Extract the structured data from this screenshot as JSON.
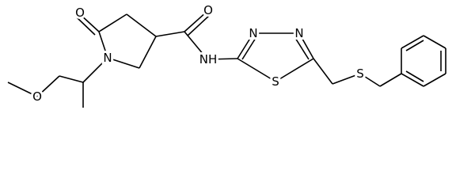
{
  "atoms": [
    {
      "label": "O"
    },
    {
      "label": "N"
    },
    {
      "label": "O"
    },
    {
      "label": "O"
    },
    {
      "label": "NH"
    },
    {
      "label": "N"
    },
    {
      "label": "N"
    },
    {
      "label": "S"
    },
    {
      "label": "S"
    }
  ]
}
